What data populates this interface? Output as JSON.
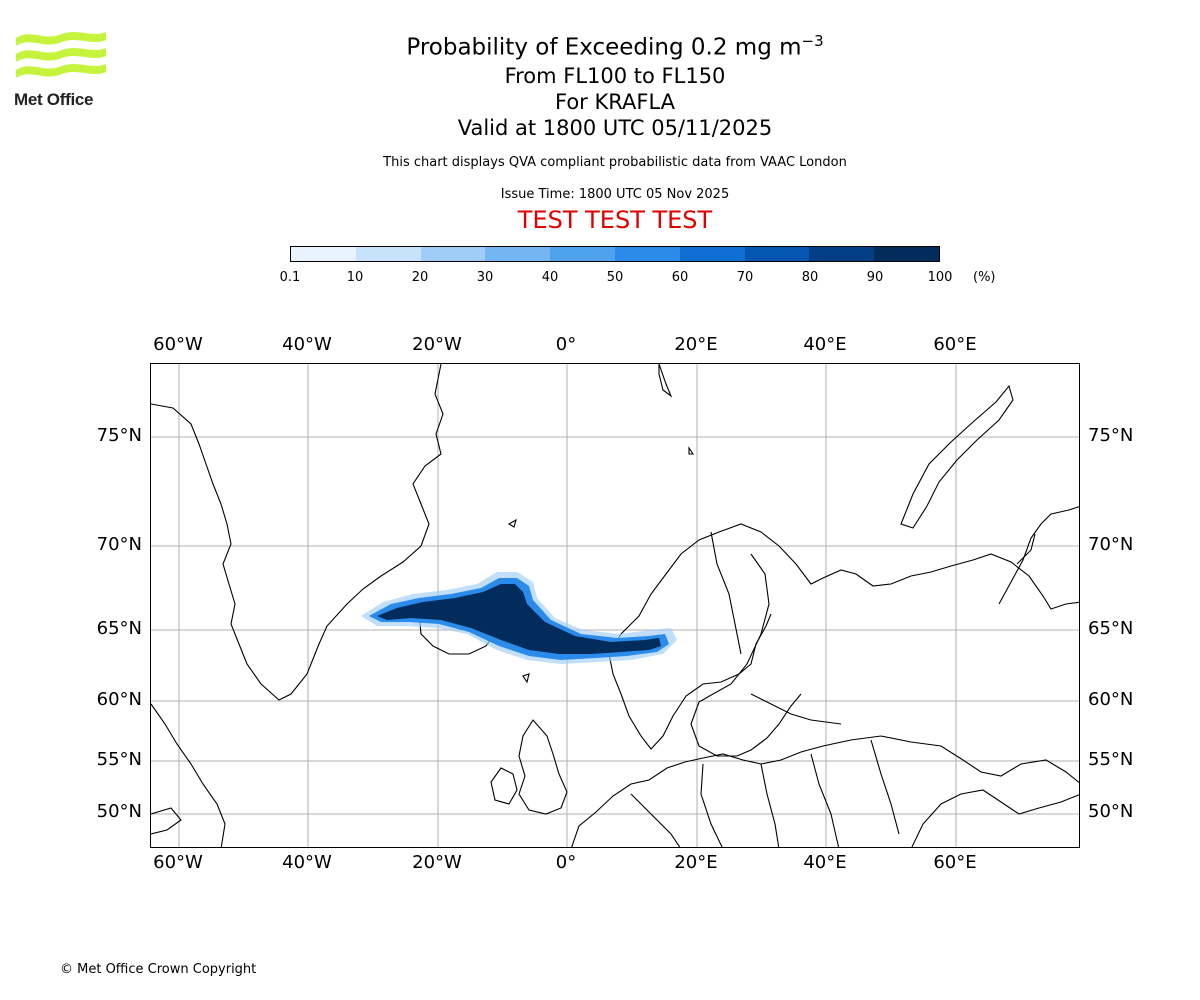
{
  "logo": {
    "name": "Met Office"
  },
  "title": {
    "main": "Probability of Exceeding 0.2 mg m",
    "main_superscript": "−3",
    "levels": "From FL100 to FL150",
    "volcano": "For KRAFLA",
    "valid": "Valid at 1800 UTC 05/11/2025"
  },
  "note": "This chart displays QVA compliant probabilistic data from VAAC London",
  "issue_time": "Issue Time: 1800 UTC 05 Nov 2025",
  "test_banner": "TEST TEST TEST",
  "colorbar": {
    "labels": [
      "0.1",
      "10",
      "20",
      "30",
      "40",
      "50",
      "60",
      "70",
      "80",
      "90",
      "100"
    ],
    "unit": "(%)",
    "colors": [
      "#e8f3ff",
      "#c7e2fb",
      "#9fcdf7",
      "#74b6f1",
      "#4ea2ee",
      "#2a8bea",
      "#0f6fd2",
      "#0556b0",
      "#043f85",
      "#022c5c"
    ]
  },
  "map": {
    "lon_labels": [
      "60°W",
      "40°W",
      "20°W",
      "0°",
      "20°E",
      "40°E",
      "60°E"
    ],
    "lat_labels": [
      "75°N",
      "70°N",
      "65°N",
      "60°N",
      "55°N",
      "50°N"
    ],
    "grid_color": "#b0b0b0",
    "plume_color": "#022c5c"
  },
  "copyright": "© Met Office Crown Copyright"
}
